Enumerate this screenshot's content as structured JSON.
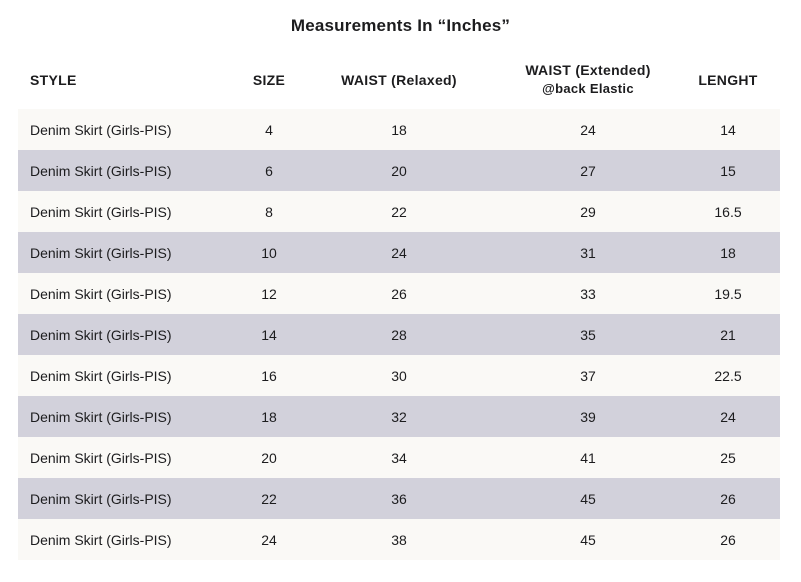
{
  "title": "Measurements In “Inches”",
  "colors": {
    "background": "#ffffff",
    "row_light": "#faf9f6",
    "row_shaded": "#d2d1db",
    "text": "#1c1c1e"
  },
  "table": {
    "columns": [
      {
        "key": "style",
        "label": "STYLE"
      },
      {
        "key": "size",
        "label": "SIZE"
      },
      {
        "key": "waist_relaxed",
        "label": "WAIST (Relaxed)"
      },
      {
        "key": "waist_extended",
        "label": "WAIST (Extended)",
        "sublabel": "@back Elastic"
      },
      {
        "key": "length",
        "label": "LENGHT"
      }
    ],
    "rows": [
      {
        "style": "Denim Skirt (Girls-PIS)",
        "size": "4",
        "waist_relaxed": "18",
        "waist_extended": "24",
        "length": "14"
      },
      {
        "style": "Denim Skirt (Girls-PIS)",
        "size": "6",
        "waist_relaxed": "20",
        "waist_extended": "27",
        "length": "15"
      },
      {
        "style": "Denim Skirt (Girls-PIS)",
        "size": "8",
        "waist_relaxed": "22",
        "waist_extended": "29",
        "length": "16.5"
      },
      {
        "style": "Denim Skirt (Girls-PIS)",
        "size": "10",
        "waist_relaxed": "24",
        "waist_extended": "31",
        "length": "18"
      },
      {
        "style": "Denim Skirt (Girls-PIS)",
        "size": "12",
        "waist_relaxed": "26",
        "waist_extended": "33",
        "length": "19.5"
      },
      {
        "style": "Denim Skirt (Girls-PIS)",
        "size": "14",
        "waist_relaxed": "28",
        "waist_extended": "35",
        "length": "21"
      },
      {
        "style": "Denim Skirt (Girls-PIS)",
        "size": "16",
        "waist_relaxed": "30",
        "waist_extended": "37",
        "length": "22.5"
      },
      {
        "style": "Denim Skirt (Girls-PIS)",
        "size": "18",
        "waist_relaxed": "32",
        "waist_extended": "39",
        "length": "24"
      },
      {
        "style": "Denim Skirt (Girls-PIS)",
        "size": "20",
        "waist_relaxed": "34",
        "waist_extended": "41",
        "length": "25"
      },
      {
        "style": "Denim Skirt (Girls-PIS)",
        "size": "22",
        "waist_relaxed": "36",
        "waist_extended": "45",
        "length": "26"
      },
      {
        "style": "Denim Skirt (Girls-PIS)",
        "size": "24",
        "waist_relaxed": "38",
        "waist_extended": "45",
        "length": "26"
      }
    ]
  },
  "chart_data": {
    "type": "table",
    "title": "Measurements In “Inches”",
    "columns": [
      "STYLE",
      "SIZE",
      "WAIST (Relaxed)",
      "WAIST (Extended) @back Elastic",
      "LENGHT"
    ],
    "rows": [
      [
        "Denim Skirt (Girls-PIS)",
        4,
        18,
        24,
        14
      ],
      [
        "Denim Skirt (Girls-PIS)",
        6,
        20,
        27,
        15
      ],
      [
        "Denim Skirt (Girls-PIS)",
        8,
        22,
        29,
        16.5
      ],
      [
        "Denim Skirt (Girls-PIS)",
        10,
        24,
        31,
        18
      ],
      [
        "Denim Skirt (Girls-PIS)",
        12,
        26,
        33,
        19.5
      ],
      [
        "Denim Skirt (Girls-PIS)",
        14,
        28,
        35,
        21
      ],
      [
        "Denim Skirt (Girls-PIS)",
        16,
        30,
        37,
        22.5
      ],
      [
        "Denim Skirt (Girls-PIS)",
        18,
        32,
        39,
        24
      ],
      [
        "Denim Skirt (Girls-PIS)",
        20,
        34,
        41,
        25
      ],
      [
        "Denim Skirt (Girls-PIS)",
        22,
        36,
        45,
        26
      ],
      [
        "Denim Skirt (Girls-PIS)",
        24,
        38,
        45,
        26
      ]
    ],
    "layout_hints": {
      "striped_rows": true,
      "stripe_pattern": "even rows (2nd, 4th, ...) shaded lavender-gray",
      "first_column_align": "left",
      "other_columns_align": "center"
    }
  }
}
